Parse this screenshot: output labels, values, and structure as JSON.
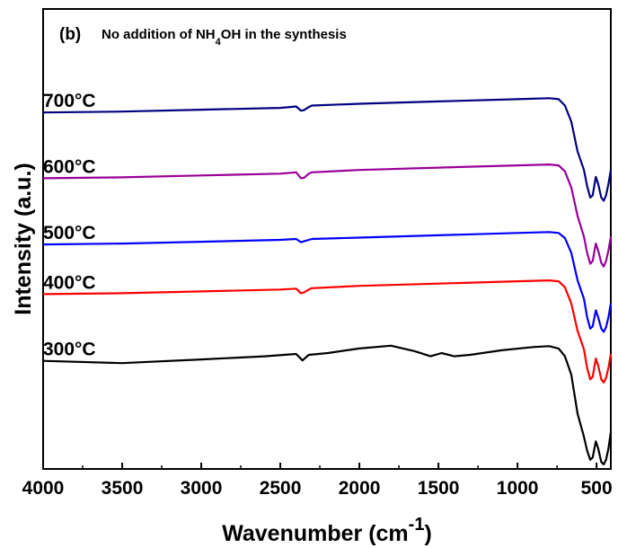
{
  "chart_data": {
    "type": "line",
    "panel_label": "(b)",
    "annotation": {
      "prefix": "No addition of NH",
      "subscript": "4",
      "suffix": "OH in the synthesis"
    },
    "xlabel": "Wavenumber (cm",
    "xlabel_superscript": "-1",
    "xlabel_close": ")",
    "ylabel": "Intensity (a.u.)",
    "xlim": [
      4000,
      410
    ],
    "x_ticks": [
      4000,
      3500,
      3000,
      2500,
      2000,
      1500,
      1000,
      500
    ],
    "x_tick_labels": [
      "4000",
      "3500",
      "3000",
      "2500",
      "2000",
      "1500",
      "1000",
      "500"
    ],
    "y_ticks_shown": false,
    "series": [
      {
        "name": "300°C",
        "color": "#000000",
        "x": [
          4000,
          3500,
          3000,
          2600,
          2400,
          2360,
          2320,
          2200,
          2000,
          1800,
          1650,
          1550,
          1480,
          1400,
          1300,
          1100,
          900,
          800,
          740,
          700,
          660,
          620,
          580,
          560,
          540,
          525,
          505,
          490,
          470,
          455,
          440,
          425,
          410
        ],
        "y": [
          0.235,
          0.23,
          0.238,
          0.245,
          0.25,
          0.236,
          0.248,
          0.252,
          0.262,
          0.268,
          0.256,
          0.245,
          0.252,
          0.245,
          0.248,
          0.258,
          0.265,
          0.267,
          0.262,
          0.245,
          0.205,
          0.12,
          0.07,
          0.04,
          0.02,
          0.025,
          0.06,
          0.045,
          0.015,
          0.01,
          0.02,
          0.045,
          0.08
        ]
      },
      {
        "name": "400°C",
        "color": "#ff0000",
        "x": [
          4000,
          3500,
          3000,
          2500,
          2400,
          2370,
          2350,
          2320,
          2300,
          2000,
          1500,
          1000,
          800,
          740,
          700,
          660,
          620,
          580,
          560,
          540,
          525,
          505,
          490,
          470,
          455,
          440,
          425,
          410
        ],
        "y": [
          0.38,
          0.382,
          0.386,
          0.39,
          0.392,
          0.382,
          0.384,
          0.39,
          0.393,
          0.398,
          0.403,
          0.408,
          0.41,
          0.408,
          0.395,
          0.36,
          0.3,
          0.26,
          0.22,
          0.195,
          0.2,
          0.24,
          0.225,
          0.195,
          0.188,
          0.198,
          0.22,
          0.25
        ]
      },
      {
        "name": "500°C",
        "color": "#0000ff",
        "x": [
          4000,
          3500,
          3000,
          2500,
          2400,
          2370,
          2350,
          2320,
          2300,
          2000,
          1500,
          1000,
          800,
          740,
          700,
          660,
          620,
          580,
          560,
          540,
          525,
          505,
          490,
          470,
          455,
          440,
          425,
          410
        ],
        "y": [
          0.488,
          0.49,
          0.494,
          0.498,
          0.5,
          0.493,
          0.495,
          0.498,
          0.5,
          0.503,
          0.508,
          0.513,
          0.515,
          0.513,
          0.502,
          0.47,
          0.41,
          0.37,
          0.33,
          0.305,
          0.31,
          0.345,
          0.33,
          0.305,
          0.298,
          0.308,
          0.33,
          0.36
        ]
      },
      {
        "name": "600°C",
        "color": "#990099",
        "x": [
          4000,
          3500,
          3000,
          2500,
          2400,
          2370,
          2350,
          2320,
          2300,
          2000,
          1500,
          1000,
          800,
          740,
          700,
          660,
          620,
          580,
          560,
          540,
          525,
          505,
          490,
          470,
          455,
          440,
          425,
          410
        ],
        "y": [
          0.632,
          0.634,
          0.638,
          0.642,
          0.645,
          0.632,
          0.633,
          0.642,
          0.645,
          0.65,
          0.655,
          0.66,
          0.662,
          0.66,
          0.647,
          0.612,
          0.55,
          0.505,
          0.47,
          0.446,
          0.452,
          0.49,
          0.475,
          0.448,
          0.44,
          0.452,
          0.475,
          0.505
        ]
      },
      {
        "name": "700°C",
        "color": "#000080",
        "x": [
          4000,
          3500,
          3000,
          2500,
          2400,
          2370,
          2350,
          2320,
          2300,
          2000,
          1500,
          1000,
          800,
          740,
          700,
          660,
          620,
          580,
          560,
          540,
          525,
          505,
          490,
          470,
          455,
          440,
          425,
          410
        ],
        "y": [
          0.775,
          0.777,
          0.781,
          0.785,
          0.788,
          0.779,
          0.78,
          0.787,
          0.79,
          0.794,
          0.799,
          0.804,
          0.806,
          0.804,
          0.79,
          0.755,
          0.69,
          0.65,
          0.615,
          0.59,
          0.595,
          0.635,
          0.62,
          0.59,
          0.583,
          0.595,
          0.62,
          0.65
        ]
      }
    ]
  }
}
